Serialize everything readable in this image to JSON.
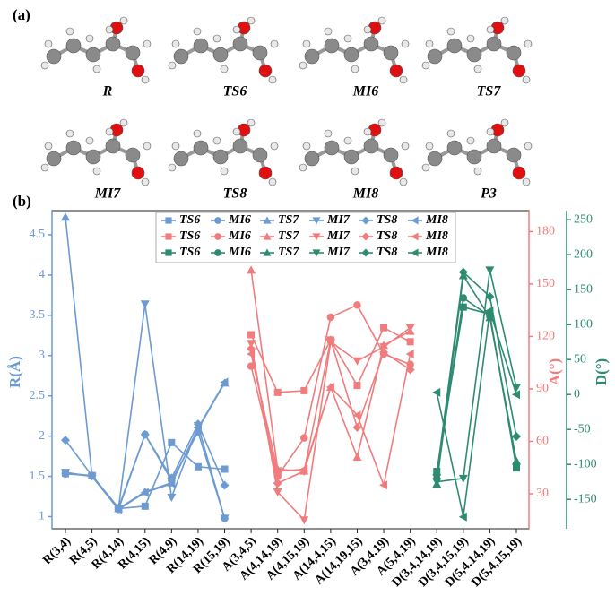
{
  "panels": {
    "a": "(a)",
    "b": "(b)"
  },
  "molecules": [
    "R",
    "TS6",
    "MI6",
    "TS7",
    "MI7",
    "TS8",
    "MI8",
    "P3"
  ],
  "chart_data": {
    "type": "line",
    "categories": [
      "R(3,4)",
      "R(4,5)",
      "R(4,14)",
      "R(4,15)",
      "R(4,9)",
      "R(14,19)",
      "R(15,19)",
      "A(3,4,5)",
      "A(4,14,19)",
      "A(4,15,19)",
      "A(14,4,15)",
      "A(14,19,15)",
      "A(3,4,19)",
      "A(5,4,19)",
      "D(3,4,14,19)",
      "D(3,4,15,19)",
      "D(5,4,14,19)",
      "D(5,4,15,19)"
    ],
    "ylabel": "R(Å)",
    "ylim": [
      0.85,
      4.8
    ],
    "yticks": [
      1.0,
      1.5,
      2.0,
      2.5,
      3.0,
      3.5,
      4.0,
      4.5
    ],
    "ycolor": "#6d9bd1",
    "y2label": "A(°)",
    "y2lim": [
      10,
      192
    ],
    "y2ticks": [
      30,
      60,
      90,
      120,
      150,
      180
    ],
    "y2color": "#f07c7e",
    "y3label": "D(°)",
    "y3lim": [
      -192,
      263
    ],
    "y3ticks": [
      -150,
      -100,
      -50,
      0,
      50,
      100,
      150,
      200,
      250
    ],
    "y3color": "#2e8b72",
    "series": [
      {
        "name": "TS6",
        "marker": "square",
        "axis": "y",
        "color": "#6d9bd1",
        "values": [
          1.54,
          1.51,
          1.1,
          1.13,
          1.92,
          1.62,
          1.59,
          null,
          null,
          null,
          null,
          null,
          null,
          null,
          null,
          null,
          null,
          null
        ]
      },
      {
        "name": "MI6",
        "marker": "circle",
        "axis": "y",
        "color": "#6d9bd1",
        "values": [
          1.53,
          1.51,
          1.09,
          2.02,
          1.45,
          2.05,
          0.98,
          null,
          null,
          null,
          null,
          null,
          null,
          null,
          null,
          null,
          null,
          null
        ]
      },
      {
        "name": "TS7",
        "marker": "triangle-up",
        "axis": "y",
        "color": "#6d9bd1",
        "values": [
          4.72,
          1.51,
          1.1,
          1.31,
          1.42,
          2.09,
          2.66,
          null,
          null,
          null,
          null,
          null,
          null,
          null,
          null,
          null,
          null,
          null
        ]
      },
      {
        "name": "MI7",
        "marker": "triangle-down",
        "axis": "y",
        "color": "#6d9bd1",
        "values": [
          1.55,
          1.5,
          1.1,
          3.64,
          1.24,
          2.13,
          0.98,
          null,
          null,
          null,
          null,
          null,
          null,
          null,
          null,
          null,
          null,
          null
        ]
      },
      {
        "name": "TS8",
        "marker": "diamond",
        "axis": "y",
        "color": "#6d9bd1",
        "values": [
          1.95,
          1.51,
          1.11,
          2.02,
          1.48,
          2.15,
          1.39,
          null,
          null,
          null,
          null,
          null,
          null,
          null,
          null,
          null,
          null,
          null
        ]
      },
      {
        "name": "MI8",
        "marker": "triangle-left",
        "axis": "y",
        "color": "#6d9bd1",
        "values": [
          1.54,
          1.5,
          1.09,
          1.3,
          1.41,
          2.1,
          2.67,
          null,
          null,
          null,
          null,
          null,
          null,
          null,
          null,
          null,
          null,
          null
        ]
      },
      {
        "name": "TS6",
        "marker": "square",
        "axis": "y2",
        "color": "#f07c7e",
        "values": [
          null,
          null,
          null,
          null,
          null,
          null,
          null,
          121,
          88,
          89,
          118,
          92,
          125,
          117,
          null,
          null,
          null,
          null
        ]
      },
      {
        "name": "MI6",
        "marker": "circle",
        "axis": "y2",
        "color": "#f07c7e",
        "values": [
          null,
          null,
          null,
          null,
          null,
          null,
          null,
          103,
          40,
          62,
          131,
          138,
          110,
          104,
          null,
          null,
          null,
          null
        ]
      },
      {
        "name": "TS7",
        "marker": "triangle-up",
        "axis": "y2",
        "color": "#f07c7e",
        "values": [
          null,
          null,
          null,
          null,
          null,
          null,
          null,
          158,
          44,
          43,
          91,
          51,
          115,
          123,
          null,
          null,
          null,
          null
        ]
      },
      {
        "name": "MI7",
        "marker": "triangle-down",
        "axis": "y2",
        "color": "#f07c7e",
        "values": [
          null,
          null,
          null,
          null,
          null,
          null,
          null,
          116,
          31,
          15,
          117,
          106,
          114,
          125,
          null,
          null,
          null,
          null
        ]
      },
      {
        "name": "TS8",
        "marker": "diamond",
        "axis": "y2",
        "color": "#f07c7e",
        "values": [
          null,
          null,
          null,
          null,
          null,
          null,
          null,
          113,
          36,
          43,
          118,
          68,
          111,
          101,
          null,
          null,
          null,
          null
        ]
      },
      {
        "name": "MI8",
        "marker": "triangle-left",
        "axis": "y2",
        "color": "#f07c7e",
        "values": [
          null,
          null,
          null,
          null,
          null,
          null,
          null,
          110,
          43,
          44,
          91,
          75,
          35,
          110,
          null,
          null,
          null,
          null
        ]
      },
      {
        "name": "TS6",
        "marker": "square",
        "axis": "y3",
        "color": "#2e8b72",
        "values": [
          null,
          null,
          null,
          null,
          null,
          null,
          null,
          null,
          null,
          null,
          null,
          null,
          null,
          null,
          -110,
          125,
          115,
          -105
        ]
      },
      {
        "name": "MI6",
        "marker": "circle",
        "axis": "y3",
        "color": "#2e8b72",
        "values": [
          null,
          null,
          null,
          null,
          null,
          null,
          null,
          null,
          null,
          null,
          null,
          null,
          null,
          null,
          -120,
          138,
          112,
          -100
        ]
      },
      {
        "name": "TS7",
        "marker": "triangle-up",
        "axis": "y3",
        "color": "#2e8b72",
        "values": [
          null,
          null,
          null,
          null,
          null,
          null,
          null,
          null,
          null,
          null,
          null,
          null,
          null,
          null,
          -128,
          170,
          110,
          -95
        ]
      },
      {
        "name": "MI7",
        "marker": "triangle-down",
        "axis": "y3",
        "color": "#2e8b72",
        "values": [
          null,
          null,
          null,
          null,
          null,
          null,
          null,
          null,
          null,
          null,
          null,
          null,
          null,
          null,
          -125,
          -120,
          178,
          10
        ]
      },
      {
        "name": "TS8",
        "marker": "diamond",
        "axis": "y3",
        "color": "#2e8b72",
        "values": [
          null,
          null,
          null,
          null,
          null,
          null,
          null,
          null,
          null,
          null,
          null,
          null,
          null,
          null,
          -115,
          175,
          140,
          -60
        ]
      },
      {
        "name": "MI8",
        "marker": "triangle-left",
        "axis": "y3",
        "color": "#2e8b72",
        "values": [
          null,
          null,
          null,
          null,
          null,
          null,
          null,
          null,
          null,
          null,
          null,
          null,
          null,
          null,
          3,
          -175,
          120,
          0
        ]
      }
    ]
  }
}
